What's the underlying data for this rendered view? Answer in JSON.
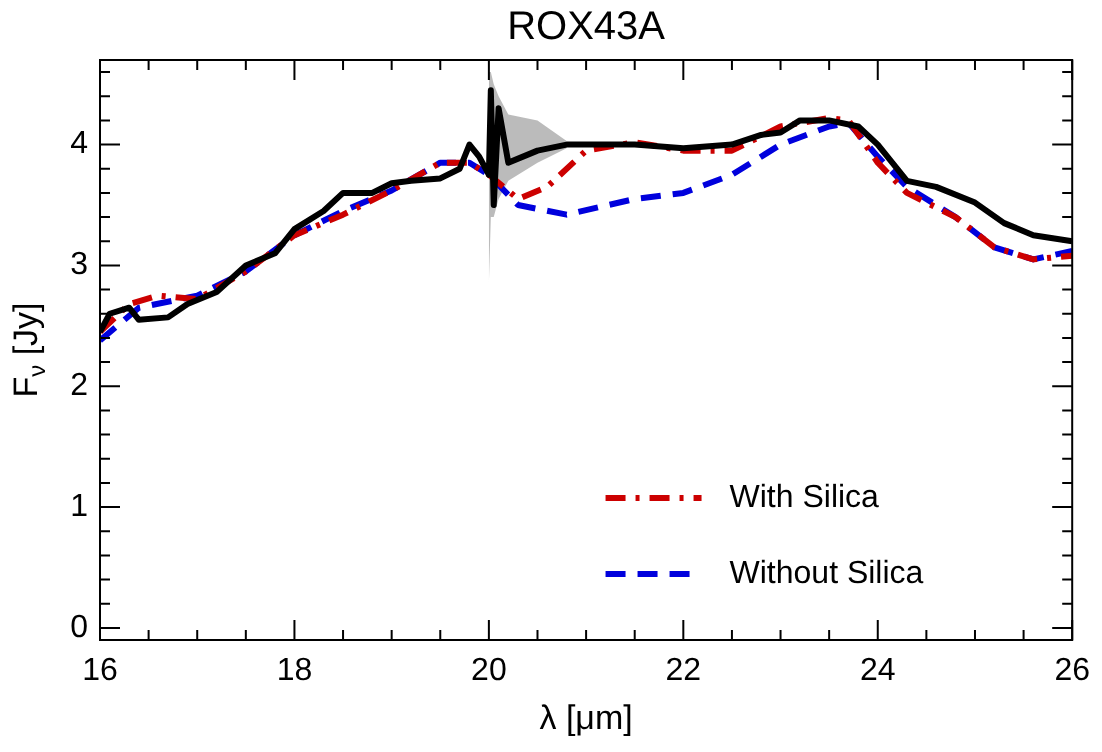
{
  "chart_data": {
    "type": "line",
    "title": "ROX43A",
    "xlabel": "λ [μm]",
    "ylabel": "F$_{ν}$ [Jy]",
    "xlim": [
      16,
      26
    ],
    "ylim": [
      -0.1,
      4.7
    ],
    "xticks": [
      16,
      {
        "value": 16.5,
        "label": null
      },
      {
        "value": 17,
        "label": null
      },
      {
        "value": 17.5,
        "label": null
      },
      18,
      {
        "value": 18.5,
        "label": null
      },
      {
        "value": 19,
        "label": null
      },
      {
        "value": 19.5,
        "label": null
      },
      20,
      {
        "value": 20.5,
        "label": null
      },
      {
        "value": 21,
        "label": null
      },
      {
        "value": 21.5,
        "label": null
      },
      22,
      {
        "value": 22.5,
        "label": null
      },
      {
        "value": 23,
        "label": null
      },
      {
        "value": 23.5,
        "label": null
      },
      24,
      {
        "value": 24.5,
        "label": null
      },
      {
        "value": 25,
        "label": null
      },
      {
        "value": 25.5,
        "label": null
      },
      26
    ],
    "yticks": [
      0,
      {
        "value": 0.2,
        "label": null
      },
      {
        "value": 0.4,
        "label": null
      },
      {
        "value": 0.6,
        "label": null
      },
      {
        "value": 0.8,
        "label": null
      },
      1,
      {
        "value": 1.2,
        "label": null
      },
      {
        "value": 1.4,
        "label": null
      },
      {
        "value": 1.6,
        "label": null
      },
      {
        "value": 1.8,
        "label": null
      },
      2,
      {
        "value": 2.2,
        "label": null
      },
      {
        "value": 2.4,
        "label": null
      },
      {
        "value": 2.6,
        "label": null
      },
      {
        "value": 2.8,
        "label": null
      },
      3,
      {
        "value": 3.2,
        "label": null
      },
      {
        "value": 3.4,
        "label": null
      },
      {
        "value": 3.6,
        "label": null
      },
      {
        "value": 3.8,
        "label": null
      },
      4,
      {
        "value": 4.2,
        "label": null
      },
      {
        "value": 4.4,
        "label": null
      },
      {
        "value": 4.6,
        "label": null
      }
    ],
    "grid": false,
    "legend": "bottom right",
    "marker": "none",
    "series": [
      {
        "color": "#000000",
        "line_style": "solid",
        "x": [
          16.0,
          16.1,
          16.3,
          16.4,
          16.7,
          16.9,
          17.2,
          17.5,
          17.8,
          18.0,
          18.3,
          18.5,
          18.8,
          19.0,
          19.2,
          19.5,
          19.7,
          19.8,
          19.9,
          20.0,
          20.02,
          20.05,
          20.1,
          20.2,
          20.5,
          20.8,
          21.5,
          22.0,
          22.5,
          22.8,
          23.0,
          23.2,
          23.5,
          23.8,
          24.0,
          24.3,
          24.6,
          25.0,
          25.3,
          25.6,
          26.0
        ],
        "values": [
          2.45,
          2.6,
          2.65,
          2.55,
          2.57,
          2.68,
          2.78,
          3.0,
          3.1,
          3.3,
          3.45,
          3.6,
          3.6,
          3.68,
          3.7,
          3.72,
          3.8,
          4.0,
          3.9,
          3.75,
          4.45,
          3.5,
          4.3,
          3.85,
          3.95,
          4.0,
          4.0,
          3.97,
          4.0,
          4.08,
          4.1,
          4.2,
          4.2,
          4.15,
          4.0,
          3.7,
          3.65,
          3.52,
          3.35,
          3.25,
          3.2
        ],
        "lower": [
          null,
          null,
          null,
          null,
          null,
          null,
          null,
          null,
          null,
          null,
          null,
          null,
          null,
          null,
          null,
          null,
          null,
          null,
          null,
          2.85,
          3.4,
          3.4,
          3.55,
          3.7,
          3.85,
          3.97,
          null,
          null,
          null,
          null,
          null,
          null,
          null,
          null,
          null,
          null,
          null,
          null,
          null,
          null,
          null
        ],
        "upper": [
          null,
          null,
          null,
          null,
          null,
          null,
          null,
          null,
          null,
          null,
          null,
          null,
          null,
          null,
          null,
          null,
          null,
          null,
          null,
          4.6,
          4.6,
          4.5,
          4.4,
          4.25,
          4.2,
          4.03,
          null,
          null,
          null,
          null,
          null,
          null,
          null,
          null,
          null,
          null,
          null,
          null,
          null,
          null,
          null
        ]
      },
      {
        "name": "With Silica",
        "color": "#cc0000",
        "line_style": "dashdot",
        "x": [
          16.0,
          16.3,
          16.6,
          17.0,
          17.5,
          18.0,
          18.5,
          19.0,
          19.5,
          19.8,
          20.0,
          20.3,
          20.6,
          21.0,
          21.5,
          22.0,
          22.5,
          23.0,
          23.5,
          23.7,
          24.0,
          24.3,
          24.8,
          25.2,
          25.6,
          26.0
        ],
        "values": [
          2.45,
          2.68,
          2.75,
          2.72,
          2.95,
          3.25,
          3.42,
          3.62,
          3.85,
          3.85,
          3.75,
          3.55,
          3.65,
          3.95,
          4.02,
          3.95,
          3.95,
          4.15,
          4.22,
          4.2,
          3.85,
          3.6,
          3.4,
          3.15,
          3.05,
          3.08
        ]
      },
      {
        "name": "Without Silica",
        "color": "#0000dd",
        "line_style": "dashed",
        "x": [
          16.0,
          16.4,
          17.0,
          17.5,
          18.0,
          18.5,
          19.0,
          19.5,
          19.8,
          20.0,
          20.3,
          20.8,
          21.5,
          22.0,
          22.5,
          23.0,
          23.5,
          23.7,
          24.0,
          24.3,
          24.8,
          25.2,
          25.6,
          26.0
        ],
        "values": [
          2.38,
          2.65,
          2.75,
          2.95,
          3.25,
          3.45,
          3.62,
          3.85,
          3.85,
          3.75,
          3.5,
          3.42,
          3.55,
          3.6,
          3.75,
          4.0,
          4.15,
          4.18,
          3.9,
          3.65,
          3.4,
          3.15,
          3.05,
          3.12
        ]
      }
    ]
  }
}
